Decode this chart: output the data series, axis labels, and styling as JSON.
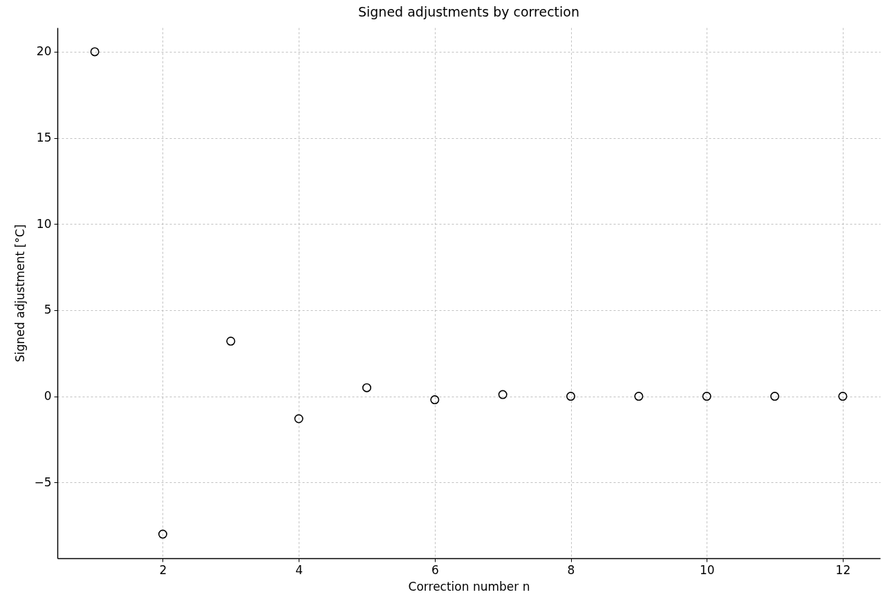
{
  "chart_data": {
    "type": "scatter",
    "title": "Signed adjustments by correction",
    "xlabel": "Correction number n",
    "ylabel": "Signed adjustment [°C]",
    "x": [
      1,
      2,
      3,
      4,
      5,
      6,
      7,
      8,
      9,
      10,
      11,
      12
    ],
    "series": [
      {
        "color": "#000000",
        "values": [
          20,
          -8,
          3.2,
          -1.3,
          0.5,
          -0.2,
          0.1,
          0,
          0,
          0,
          0,
          0
        ]
      }
    ],
    "xlim": [
      0.45,
      12.55
    ],
    "xticks": [
      2,
      4,
      6,
      8,
      10,
      12
    ],
    "ylim": [
      -9.4,
      21.4
    ],
    "yticks": [
      {
        "value": -5,
        "label": "−5"
      },
      0,
      5,
      10,
      15,
      20
    ],
    "grid": true,
    "marker": "circle"
  }
}
